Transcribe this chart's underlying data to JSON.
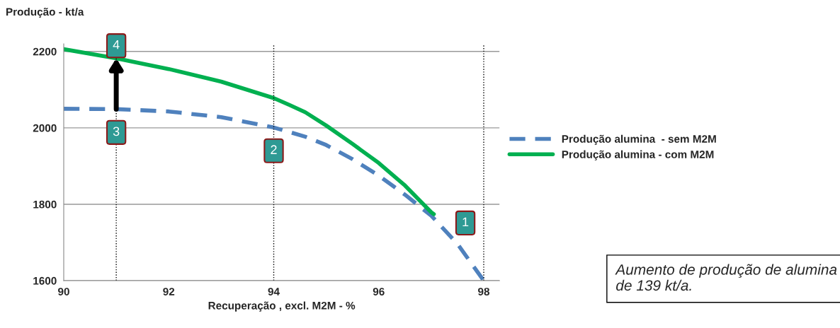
{
  "chart_data": {
    "type": "line",
    "xlabel": "Recuperação , excl. M2M - %",
    "ylabel": "Produção - kt/a",
    "x": [
      90,
      91,
      92,
      93,
      94,
      94.6,
      95,
      95.5,
      96,
      96.5,
      97,
      97.5,
      98
    ],
    "series": [
      {
        "name": "Produção alumina  - sem M2M",
        "color": "#4f81bd",
        "line_style": "dashed",
        "values": [
          2050,
          2049,
          2043,
          2028,
          2001,
          1977,
          1955,
          1918,
          1875,
          1825,
          1770,
          1696,
          1600
        ]
      },
      {
        "name": "Produção alumina - com M2M",
        "color": "#00b050",
        "line_style": "solid",
        "x": [
          90,
          91,
          92,
          93,
          94,
          94.3,
          94.6,
          95,
          95.5,
          96,
          96.5,
          97,
          97.05
        ],
        "values": [
          2206,
          2182,
          2154,
          2121,
          2078,
          2060,
          2041,
          2006,
          1958,
          1908,
          1849,
          1779,
          1774
        ]
      }
    ],
    "xlim": [
      90,
      98.3
    ],
    "ylim": [
      1600,
      2220
    ],
    "xticks": [
      90,
      92,
      94,
      96,
      98
    ],
    "yticks": [
      1600,
      1800,
      2000,
      2200
    ],
    "grid": "y",
    "legend": "right",
    "marker": "none",
    "ref_lines": [
      {
        "axis": "x",
        "value": 91,
        "line_style": "dotted"
      },
      {
        "axis": "x",
        "value": 94,
        "line_style": "dotted"
      },
      {
        "axis": "x",
        "value": 98,
        "line_style": "dotted"
      }
    ],
    "annotations": [
      {
        "text": "4",
        "x": 91,
        "y": 2215
      },
      {
        "text": "3",
        "x": 91,
        "y": 1988
      },
      {
        "text": "2",
        "x": 94,
        "y": 1940
      },
      {
        "text": "1",
        "x": 97.65,
        "y": 1751
      },
      "Aumento de produção de alumina de 139 kt/a."
    ]
  }
}
